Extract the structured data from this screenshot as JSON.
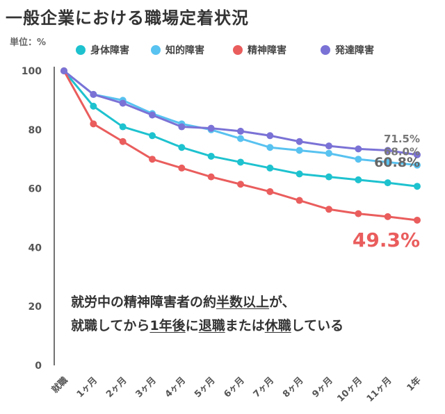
{
  "title": "一般企業における職場定着状況",
  "unit_label": "単位：%",
  "annotation": {
    "line1": [
      "就労中の精神障害者の約",
      "半数以上",
      "が、"
    ],
    "line2": [
      "就職してから",
      "1年後",
      "に",
      "退職",
      "または",
      "休職",
      "している"
    ]
  },
  "chart_data": {
    "type": "line",
    "title": "一般企業における職場定着状況",
    "x": [
      "就職",
      "1ヶ月",
      "2ヶ月",
      "3ヶ月",
      "4ヶ月",
      "5ヶ月",
      "6ヶ月",
      "7ヶ月",
      "8ヶ月",
      "9ヶ月",
      "10ヶ月",
      "11ヶ月",
      "1年"
    ],
    "ylim": [
      0,
      100
    ],
    "yticks": [
      0,
      20,
      40,
      60,
      80,
      100
    ],
    "grid": false,
    "legend_position": "top",
    "series": [
      {
        "name": "身体障害",
        "color": "#1ec2cf",
        "values": [
          100,
          88,
          81,
          78,
          74,
          71,
          69,
          67,
          65,
          64,
          63,
          62,
          60.8
        ],
        "end_label": "60.8%"
      },
      {
        "name": "知的障害",
        "color": "#58c2f0",
        "values": [
          100,
          92,
          90,
          85.5,
          82,
          80,
          77,
          74,
          73,
          72,
          70,
          69,
          68.0
        ],
        "end_label": "68.0%"
      },
      {
        "name": "精神障害",
        "color": "#ea5d5d",
        "values": [
          100,
          82,
          76,
          70,
          67,
          64,
          61.5,
          59,
          56,
          53,
          51.5,
          50.5,
          49.3
        ],
        "end_label": "49.3%"
      },
      {
        "name": "発達障害",
        "color": "#7b72d6",
        "values": [
          100,
          92,
          89,
          85,
          81,
          80.5,
          79.5,
          78,
          76,
          74.5,
          73.5,
          73,
          71.5
        ],
        "end_label": "71.5%"
      }
    ]
  }
}
